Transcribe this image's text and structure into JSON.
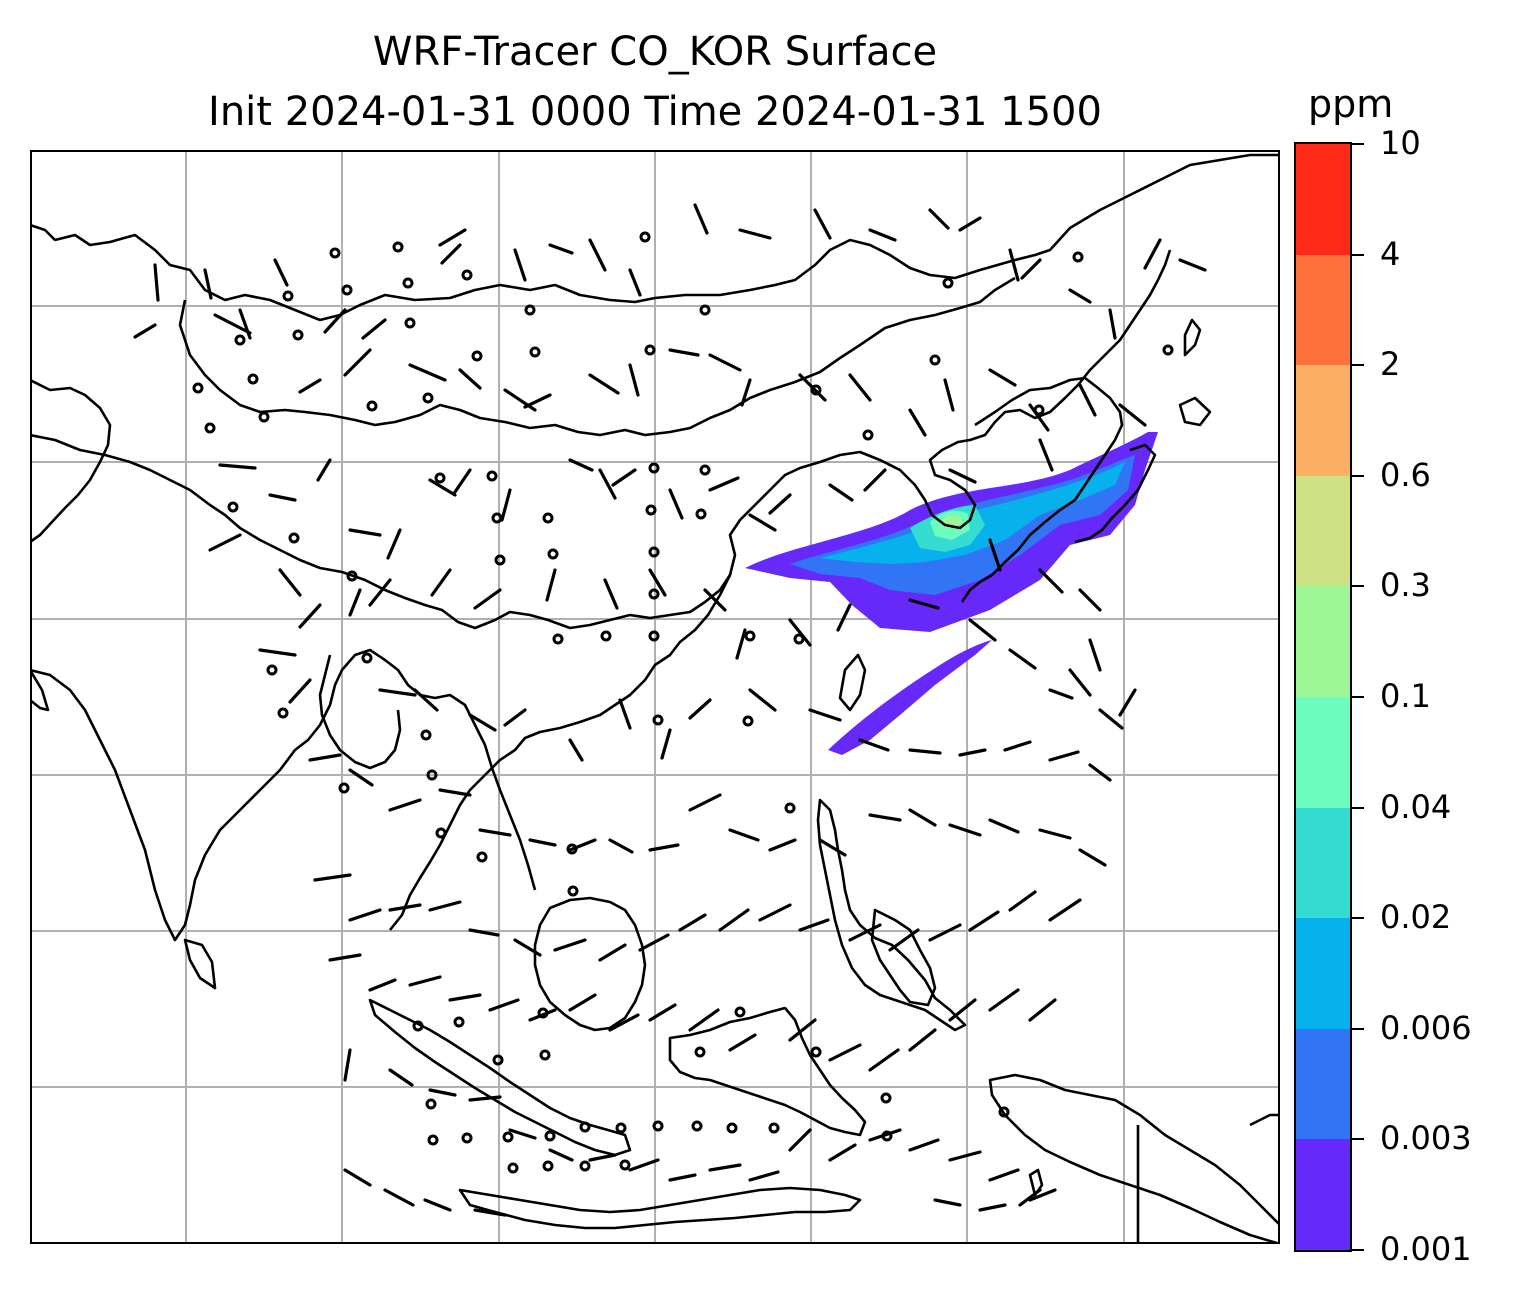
{
  "title": {
    "line1": "WRF-Tracer CO_KOR Surface",
    "line2": "Init 2024-01-31 0000 Time 2024-01-31 1500"
  },
  "colorbar": {
    "unit": "ppm",
    "ticks": [
      "0.001",
      "0.003",
      "0.006",
      "0.02",
      "0.04",
      "0.1",
      "0.3",
      "0.6",
      "2",
      "4",
      "10"
    ],
    "colors": [
      "#6729fa",
      "#3175f5",
      "#07b1ec",
      "#35dcd2",
      "#6cfcbd",
      "#9ef797",
      "#cedf84",
      "#fdaf63",
      "#ff713c",
      "#fe2a17"
    ]
  },
  "map": {
    "land_outline_color": "#000000",
    "gridline_color": "#b0b0b0",
    "wind_barb_color": "#000000"
  }
}
